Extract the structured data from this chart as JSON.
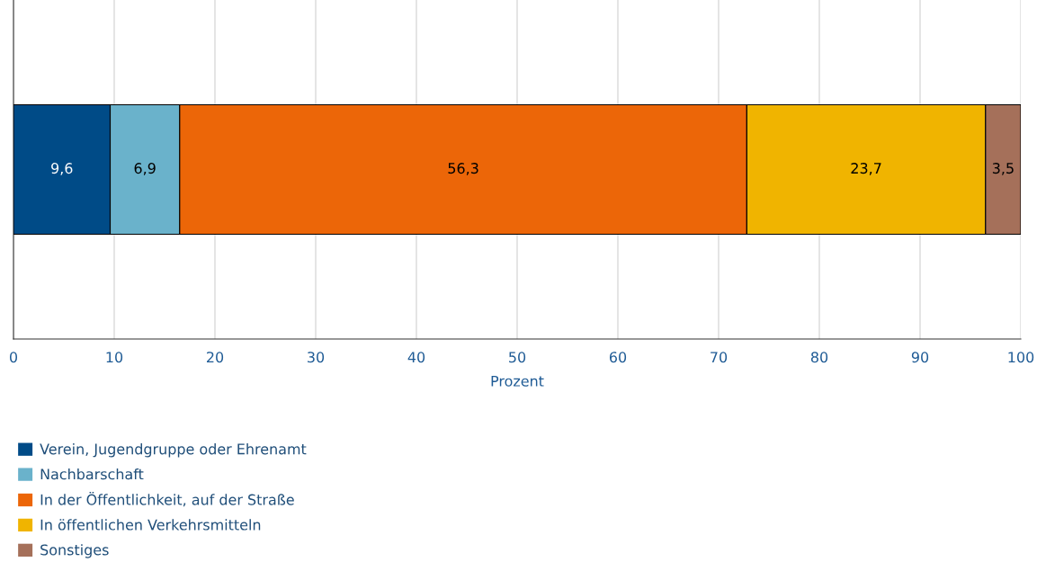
{
  "chart_data": {
    "type": "bar",
    "orientation": "horizontal",
    "stacked": true,
    "categories": [
      null
    ],
    "xlabel": "Prozent",
    "xlim": [
      0,
      100
    ],
    "xticks": [
      0,
      10,
      20,
      30,
      40,
      50,
      60,
      70,
      80,
      90,
      100
    ],
    "grid": "x",
    "legend": "bottom",
    "series": [
      {
        "name": "Verein, Jugendgruppe oder Ehrenamt",
        "color": "#004b87",
        "values": [
          9.6
        ],
        "value_labels": [
          "9,6"
        ]
      },
      {
        "name": "Nachbarschaft",
        "color": "#6ab2cb",
        "values": [
          6.9
        ],
        "value_labels": [
          "6,9"
        ]
      },
      {
        "name": "In der Öffentlichkeit, auf der Straße",
        "color": "#ec6608",
        "values": [
          56.3
        ],
        "value_labels": [
          "56,3"
        ]
      },
      {
        "name": "In öffentlichen Verkehrsmitteln",
        "color": "#f0b400",
        "values": [
          23.7
        ],
        "value_labels": [
          "23,7"
        ]
      },
      {
        "name": "Sonstiges",
        "color": "#a5705a",
        "values": [
          3.5
        ],
        "value_labels": [
          "3,5"
        ]
      }
    ]
  }
}
